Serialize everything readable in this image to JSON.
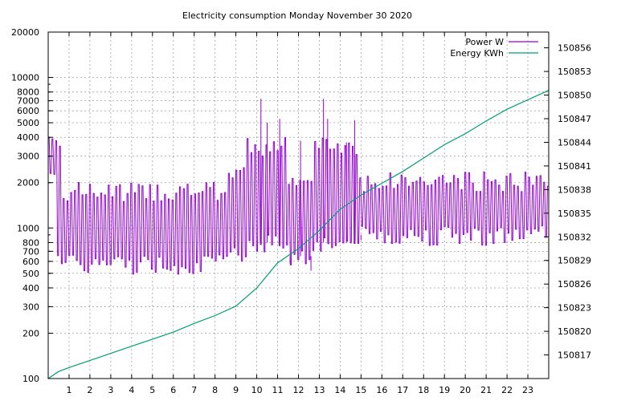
{
  "chart_data": {
    "type": "line",
    "title": "Electricity consumption Monday November 30 2020",
    "xlabel": "",
    "ylabel": "",
    "y2label": "",
    "xlim": [
      0,
      24
    ],
    "ylim": [
      100,
      20000
    ],
    "y_scale": "log",
    "y2lim": [
      150814,
      150858
    ],
    "grid": true,
    "legend_position": "top-right",
    "x_ticks": [
      1,
      2,
      3,
      4,
      5,
      6,
      7,
      8,
      9,
      10,
      11,
      12,
      13,
      14,
      15,
      16,
      17,
      18,
      19,
      20,
      21,
      22,
      23
    ],
    "y_ticks": [
      100,
      200,
      300,
      400,
      500,
      600,
      700,
      800,
      1000,
      2000,
      3000,
      4000,
      5000,
      6000,
      7000,
      8000,
      10000,
      20000
    ],
    "y2_ticks": [
      150817,
      150820,
      150823,
      150826,
      150829,
      150832,
      150835,
      150838,
      150841,
      150844,
      150847,
      150850,
      150853,
      150856
    ],
    "series": [
      {
        "name": "Power W",
        "axis": "y",
        "color": "#9400d3",
        "style": "oscillating",
        "segments": [
          {
            "x0": 0.0,
            "x1": 0.4,
            "low": 2600,
            "high": 3900
          },
          {
            "x0": 0.4,
            "x1": 0.6,
            "low": 700,
            "high": 4000
          },
          {
            "x0": 0.6,
            "x1": 8.6,
            "low": 580,
            "high": 1750
          },
          {
            "x0": 8.6,
            "x1": 9.5,
            "low": 700,
            "high": 2400
          },
          {
            "x0": 9.5,
            "x1": 11.5,
            "low": 800,
            "high": 3500
          },
          {
            "x0": 11.5,
            "x1": 12.6,
            "low": 650,
            "high": 2000
          },
          {
            "x0": 12.6,
            "x1": 14.8,
            "low": 800,
            "high": 3500
          },
          {
            "x0": 14.8,
            "x1": 24.0,
            "low": 900,
            "high": 2050
          }
        ],
        "peaks": [
          {
            "x": 10.2,
            "value": 7200
          },
          {
            "x": 10.5,
            "value": 5000
          },
          {
            "x": 11.1,
            "value": 5300
          },
          {
            "x": 11.6,
            "value": 580
          },
          {
            "x": 12.1,
            "value": 3800
          },
          {
            "x": 13.2,
            "value": 7200
          },
          {
            "x": 13.4,
            "value": 5300
          },
          {
            "x": 14.3,
            "value": 3700
          },
          {
            "x": 14.7,
            "value": 5200
          },
          {
            "x": 15.0,
            "value": 830
          },
          {
            "x": 12.6,
            "value": 520
          }
        ]
      },
      {
        "name": "Energy KWh",
        "axis": "y2",
        "color": "#009e73",
        "x": [
          0,
          0.5,
          1,
          2,
          3,
          4,
          5,
          6,
          7,
          8,
          9,
          10,
          11,
          12,
          13,
          14,
          15,
          16,
          17,
          18,
          19,
          20,
          21,
          22,
          23,
          24
        ],
        "values": [
          150814.0,
          150814.9,
          150815.4,
          150816.3,
          150817.2,
          150818.1,
          150819.0,
          150819.9,
          150821.0,
          150822.0,
          150823.2,
          150825.5,
          150828.7,
          150830.5,
          150832.8,
          150835.5,
          150837.3,
          150838.8,
          150840.3,
          150842.0,
          150843.7,
          150845.1,
          150846.7,
          150848.2,
          150849.4,
          150850.6
        ]
      }
    ]
  }
}
